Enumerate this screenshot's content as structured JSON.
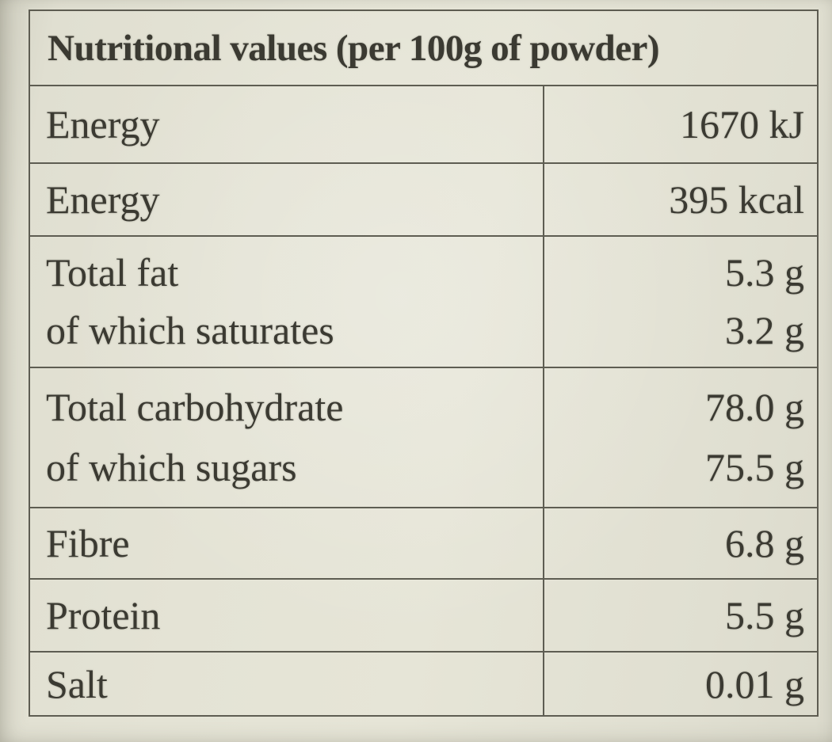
{
  "label": {
    "title": "Nutritional values (per 100g of powder)",
    "rows": [
      {
        "lines": [
          {
            "name": "Energy",
            "value": "1670 kJ"
          }
        ]
      },
      {
        "lines": [
          {
            "name": "Energy",
            "value": "395 kcal"
          }
        ]
      },
      {
        "lines": [
          {
            "name": "Total fat",
            "value": "5.3 g"
          },
          {
            "name": "of which saturates",
            "value": "3.2 g"
          }
        ]
      },
      {
        "lines": [
          {
            "name": "Total carbohydrate",
            "value": "78.0 g"
          },
          {
            "name": "of which sugars",
            "value": "75.5 g"
          }
        ]
      },
      {
        "lines": [
          {
            "name": "Fibre",
            "value": "6.8 g"
          }
        ]
      },
      {
        "lines": [
          {
            "name": "Protein",
            "value": "5.5 g"
          }
        ]
      },
      {
        "lines": [
          {
            "name": "Salt",
            "value": "0.01 g"
          }
        ]
      }
    ]
  },
  "colors": {
    "paper": "#e4e3d5",
    "ink": "#3b3a32",
    "rule": "#5e5d52"
  }
}
